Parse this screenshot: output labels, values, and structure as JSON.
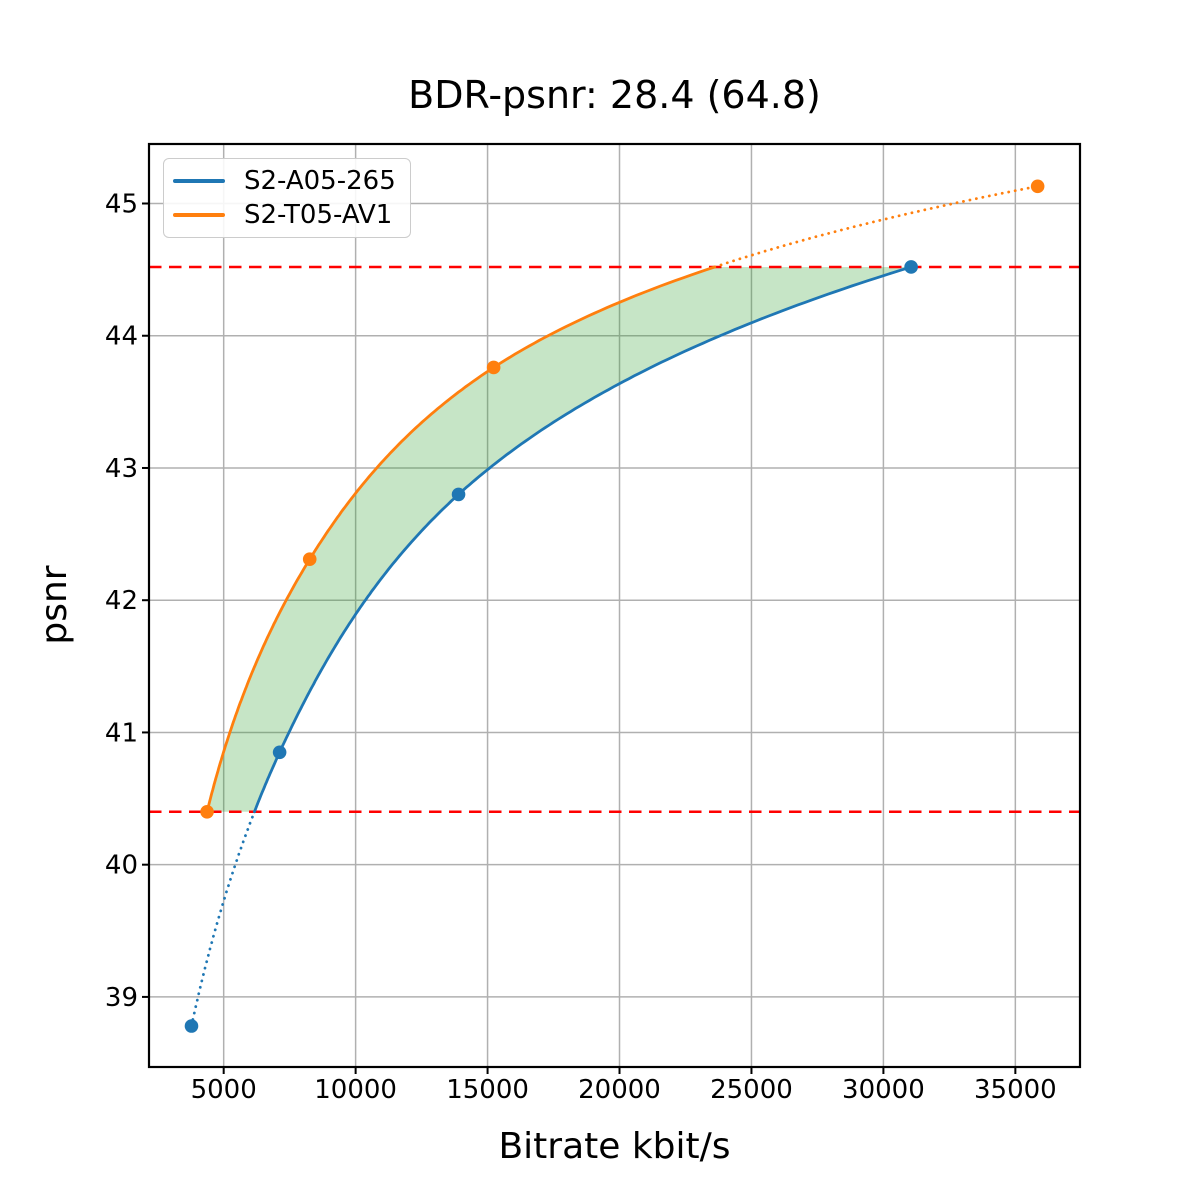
{
  "figure": {
    "title": "BDR-psnr: 28.4 (64.8)"
  },
  "chart_data": {
    "type": "line",
    "title": "BDR-psnr: 28.4 (64.8)",
    "xlabel": "Bitrate kbit/s",
    "ylabel": "psnr",
    "xlim": [
      2170,
      37450
    ],
    "ylim": [
      38.47,
      45.45
    ],
    "x_ticks": [
      5000,
      10000,
      15000,
      20000,
      25000,
      30000,
      35000
    ],
    "y_ticks": [
      39,
      40,
      41,
      42,
      43,
      44,
      45
    ],
    "grid": true,
    "legend_position": "upper left",
    "interpolation": "pchip of log10(bitrate) vs psnr",
    "series": [
      {
        "name": "S2-A05-265",
        "color": "#1f77b4",
        "points": [
          [
            3780,
            38.78
          ],
          [
            7120,
            40.85
          ],
          [
            13900,
            42.8
          ],
          [
            31050,
            44.52
          ]
        ]
      },
      {
        "name": "S2-T05-AV1",
        "color": "#ff7f0e",
        "points": [
          [
            4370,
            40.4
          ],
          [
            8260,
            42.31
          ],
          [
            15230,
            43.76
          ],
          [
            35845,
            45.13
          ]
        ]
      }
    ],
    "bd_bounds": {
      "lower_psnr": 40.4,
      "upper_psnr": 44.52,
      "line_color": "#ff0000",
      "line_style": "dashed"
    },
    "shaded_region": {
      "fill_color": "#2ca02c",
      "fill_opacity": 0.27,
      "between_psnr": [
        40.4,
        44.52
      ]
    }
  },
  "style": {
    "grid_color": "#b0b0b0",
    "axis_color": "#000000",
    "background": "#ffffff"
  }
}
